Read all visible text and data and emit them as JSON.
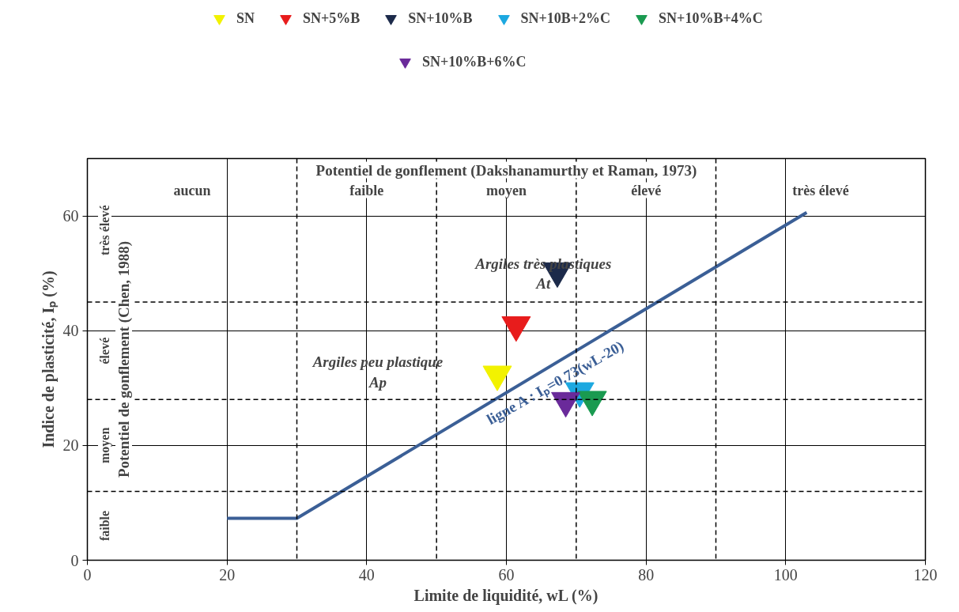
{
  "chart_data": {
    "type": "scatter",
    "xlabel": "Limite de liquidité, wL (%)",
    "ylabel": "Indice de plasticité, Iₚ (%)",
    "xlim": [
      0,
      120
    ],
    "ylim": [
      0,
      70
    ],
    "xticks": [
      0,
      20,
      40,
      60,
      80,
      100,
      120
    ],
    "yticks": [
      0,
      20,
      40,
      60
    ],
    "grid": true,
    "legend": "top",
    "marker": "triangle",
    "annotations": [
      "Potentiel de gonflement (Dakshanamurthy et Raman, 1973)",
      "Potentiel de gonflement (Chen, 1988)",
      "aucun",
      "faible",
      "moyen",
      "élevé",
      "très élevé",
      "faible",
      "moyen",
      "élevé",
      "très élevé",
      "Argiles très plastiques\nAt",
      "Argiles peu plastique\nAp"
    ],
    "ref_lines": [
      {
        "axis": "x",
        "value": 30,
        "line_style": "dashed"
      },
      {
        "axis": "x",
        "value": 50,
        "line_style": "dashed"
      },
      {
        "axis": "x",
        "value": 70,
        "line_style": "dashed"
      },
      {
        "axis": "x",
        "value": 90,
        "line_style": "dashed"
      },
      {
        "axis": "y",
        "value": 12,
        "line_style": "dashed"
      },
      {
        "axis": "y",
        "value": 28,
        "line_style": "dashed"
      },
      {
        "axis": "y",
        "value": 45,
        "line_style": "dashed"
      }
    ],
    "series": [
      {
        "name": "ligne A : Iₚ=0.73(wL-20)",
        "type": "line",
        "marker": "none",
        "color": "#3b5f96",
        "x": [
          20,
          30,
          103
        ],
        "values": [
          7.3,
          7.3,
          60.6
        ]
      },
      {
        "name": "SN",
        "color": "#f2f200",
        "x": [
          58.7
        ],
        "values": [
          32.4
        ]
      },
      {
        "name": "SN+5%B",
        "color": "#e81c1c",
        "x": [
          61.4
        ],
        "values": [
          41
        ]
      },
      {
        "name": "SN+10%B",
        "color": "#1c2a4a",
        "x": [
          67.3
        ],
        "values": [
          50.4
        ]
      },
      {
        "name": "SN+10B+2%C",
        "color": "#1ca8e0",
        "x": [
          70.5
        ],
        "values": [
          29.5
        ]
      },
      {
        "name": "SN+10%B+4%C",
        "color": "#1a9a50",
        "x": [
          72.3
        ],
        "values": [
          28
        ]
      },
      {
        "name": "SN+10%B+6%C",
        "color": "#6a2a9a",
        "x": [
          68.5
        ],
        "values": [
          27.8
        ]
      }
    ]
  }
}
